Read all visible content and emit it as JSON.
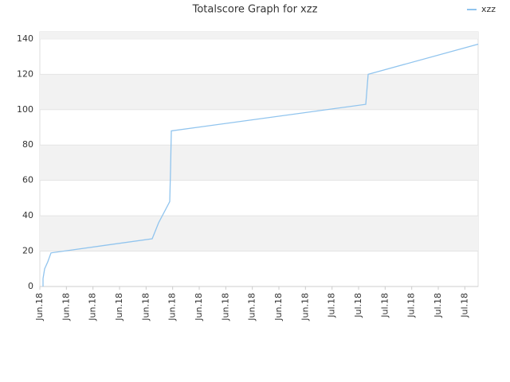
{
  "chart_data": {
    "type": "line",
    "title": "Totalscore Graph for xzz",
    "series": [
      {
        "name": "xzz",
        "color": "#90c4ee",
        "x": [
          0.12,
          0.12,
          0.18,
          0.3,
          0.42,
          4.23,
          4.47,
          4.89,
          4.92,
          4.95,
          12.27,
          12.36,
          16.5
        ],
        "values": [
          0,
          4.5,
          10,
          14,
          19,
          27,
          36,
          48,
          66,
          88,
          103,
          120,
          137
        ]
      }
    ],
    "xlim": [
      0,
      16.5
    ],
    "xticks": [
      {
        "value": 0,
        "label": "Jun.18"
      },
      {
        "value": 1,
        "label": "Jun.18"
      },
      {
        "value": 2,
        "label": "Jun.18"
      },
      {
        "value": 3,
        "label": "Jun.18"
      },
      {
        "value": 4,
        "label": "Jun.18"
      },
      {
        "value": 5,
        "label": "Jun.18"
      },
      {
        "value": 6,
        "label": "Jun.18"
      },
      {
        "value": 7,
        "label": "Jun.18"
      },
      {
        "value": 8,
        "label": "Jun.18"
      },
      {
        "value": 9,
        "label": "Jun.18"
      },
      {
        "value": 10,
        "label": "Jun.18"
      },
      {
        "value": 11,
        "label": "Jul.18"
      },
      {
        "value": 12,
        "label": "Jul.18"
      },
      {
        "value": 13,
        "label": "Jul.18"
      },
      {
        "value": 14,
        "label": "Jul.18"
      },
      {
        "value": 15,
        "label": "Jul.18"
      },
      {
        "value": 16,
        "label": "Jul.18"
      }
    ],
    "ylim": [
      0,
      144
    ],
    "yticks": [
      0,
      20,
      40,
      60,
      80,
      100,
      120,
      140
    ],
    "grid": true,
    "legend": "top-right"
  }
}
